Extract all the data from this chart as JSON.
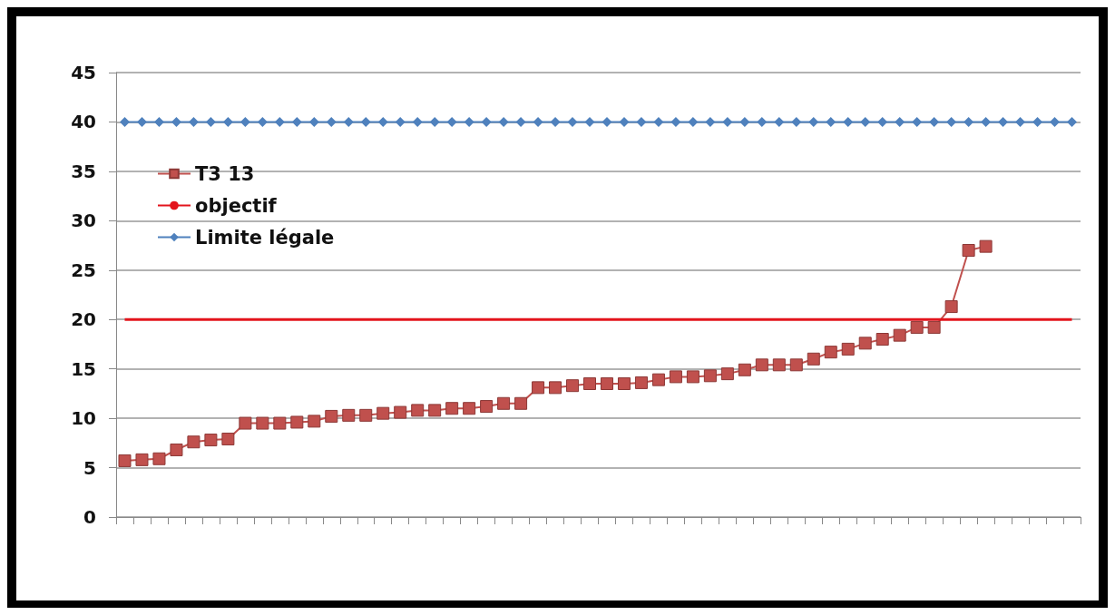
{
  "chart_data": {
    "type": "line",
    "categories": [
      null,
      null,
      null,
      null,
      null,
      null,
      null,
      null,
      null,
      null,
      null,
      null,
      null,
      null,
      null,
      null,
      null,
      null,
      null,
      null,
      null,
      null,
      null,
      null,
      null,
      null,
      null,
      null,
      null,
      null,
      null,
      null,
      null,
      null,
      null,
      null,
      null,
      null,
      null,
      null,
      null,
      null,
      null,
      null,
      null,
      null,
      null,
      null,
      null,
      null,
      null,
      null,
      null,
      null,
      null,
      null
    ],
    "series": [
      {
        "name": "T3 13",
        "color": "#c0504d",
        "marker": "square",
        "values": [
          5.7,
          5.8,
          5.9,
          6.8,
          7.6,
          7.8,
          7.9,
          9.5,
          9.5,
          9.5,
          9.6,
          9.7,
          10.2,
          10.3,
          10.3,
          10.5,
          10.6,
          10.8,
          10.8,
          11.0,
          11.0,
          11.2,
          11.5,
          11.5,
          13.1,
          13.1,
          13.3,
          13.5,
          13.5,
          13.5,
          13.6,
          13.9,
          14.2,
          14.2,
          14.3,
          14.5,
          14.9,
          15.4,
          15.4,
          15.4,
          16.0,
          16.7,
          17.0,
          17.6,
          18.0,
          18.4,
          19.2,
          19.2,
          21.3,
          27.0,
          27.4,
          null,
          null,
          null,
          null,
          null
        ]
      },
      {
        "name": "objectif",
        "color": "#e3141c",
        "marker": "none",
        "values": [
          20,
          20,
          20,
          20,
          20,
          20,
          20,
          20,
          20,
          20,
          20,
          20,
          20,
          20,
          20,
          20,
          20,
          20,
          20,
          20,
          20,
          20,
          20,
          20,
          20,
          20,
          20,
          20,
          20,
          20,
          20,
          20,
          20,
          20,
          20,
          20,
          20,
          20,
          20,
          20,
          20,
          20,
          20,
          20,
          20,
          20,
          20,
          20,
          20,
          20,
          20,
          20,
          20,
          20,
          20,
          20
        ]
      },
      {
        "name": "Limite légale",
        "color": "#4f81bd",
        "marker": "diamond",
        "values": [
          40,
          40,
          40,
          40,
          40,
          40,
          40,
          40,
          40,
          40,
          40,
          40,
          40,
          40,
          40,
          40,
          40,
          40,
          40,
          40,
          40,
          40,
          40,
          40,
          40,
          40,
          40,
          40,
          40,
          40,
          40,
          40,
          40,
          40,
          40,
          40,
          40,
          40,
          40,
          40,
          40,
          40,
          40,
          40,
          40,
          40,
          40,
          40,
          40,
          40,
          40,
          40,
          40,
          40,
          40,
          40
        ]
      }
    ],
    "ylim": [
      0,
      45
    ],
    "yticks": [
      0,
      5,
      10,
      15,
      20,
      25,
      30,
      35,
      40,
      45
    ],
    "grid": "y",
    "legend": "top left"
  }
}
